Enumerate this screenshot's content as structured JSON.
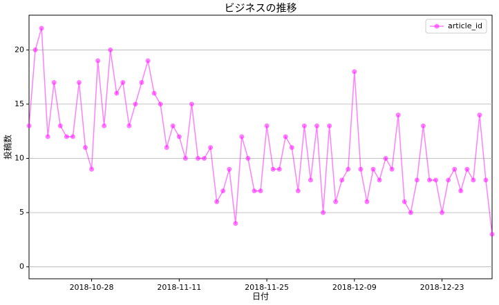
{
  "chart_data": {
    "type": "line",
    "title": "ビジネスの推移",
    "x_label": "日付",
    "y_label": "投稿数",
    "x": [
      "2018-10-18",
      "2018-10-19",
      "2018-10-20",
      "2018-10-21",
      "2018-10-22",
      "2018-10-23",
      "2018-10-24",
      "2018-10-25",
      "2018-10-26",
      "2018-10-27",
      "2018-10-28",
      "2018-10-29",
      "2018-10-30",
      "2018-10-31",
      "2018-11-01",
      "2018-11-02",
      "2018-11-03",
      "2018-11-04",
      "2018-11-05",
      "2018-11-06",
      "2018-11-07",
      "2018-11-08",
      "2018-11-09",
      "2018-11-10",
      "2018-11-11",
      "2018-11-12",
      "2018-11-13",
      "2018-11-14",
      "2018-11-15",
      "2018-11-16",
      "2018-11-17",
      "2018-11-18",
      "2018-11-19",
      "2018-11-20",
      "2018-11-21",
      "2018-11-22",
      "2018-11-23",
      "2018-11-24",
      "2018-11-25",
      "2018-11-26",
      "2018-11-27",
      "2018-11-28",
      "2018-11-29",
      "2018-11-30",
      "2018-12-01",
      "2018-12-02",
      "2018-12-03",
      "2018-12-04",
      "2018-12-05",
      "2018-12-06",
      "2018-12-07",
      "2018-12-08",
      "2018-12-09",
      "2018-12-10",
      "2018-12-11",
      "2018-12-12",
      "2018-12-13",
      "2018-12-14",
      "2018-12-15",
      "2018-12-16",
      "2018-12-17",
      "2018-12-18",
      "2018-12-19",
      "2018-12-20",
      "2018-12-21",
      "2018-12-22",
      "2018-12-23",
      "2018-12-24",
      "2018-12-25",
      "2018-12-26",
      "2018-12-27",
      "2018-12-28",
      "2018-12-29",
      "2018-12-30",
      "2018-12-31"
    ],
    "series": [
      {
        "name": "article_id",
        "color": "#ff00ff",
        "values": [
          13,
          20,
          22,
          12,
          17,
          13,
          12,
          12,
          17,
          11,
          9,
          19,
          13,
          20,
          16,
          17,
          13,
          15,
          17,
          19,
          16,
          15,
          11,
          13,
          12,
          10,
          15,
          10,
          10,
          11,
          6,
          7,
          9,
          4,
          12,
          10,
          7,
          7,
          13,
          9,
          9,
          12,
          11,
          7,
          13,
          8,
          13,
          5,
          13,
          6,
          8,
          9,
          18,
          9,
          6,
          9,
          8,
          10,
          9,
          14,
          6,
          5,
          8,
          13,
          8,
          8,
          5,
          8,
          9,
          7,
          9,
          8,
          14,
          8,
          3
        ]
      }
    ],
    "xlim": [
      "2018-10-18",
      "2018-12-31"
    ],
    "xticks": [
      "2018-10-28",
      "2018-11-11",
      "2018-11-25",
      "2018-12-09",
      "2018-12-23"
    ],
    "ylim": [
      -1.1,
      23.2
    ],
    "yticks": [
      0,
      5,
      10,
      15,
      20
    ],
    "grid": true,
    "legend": "upper right"
  }
}
